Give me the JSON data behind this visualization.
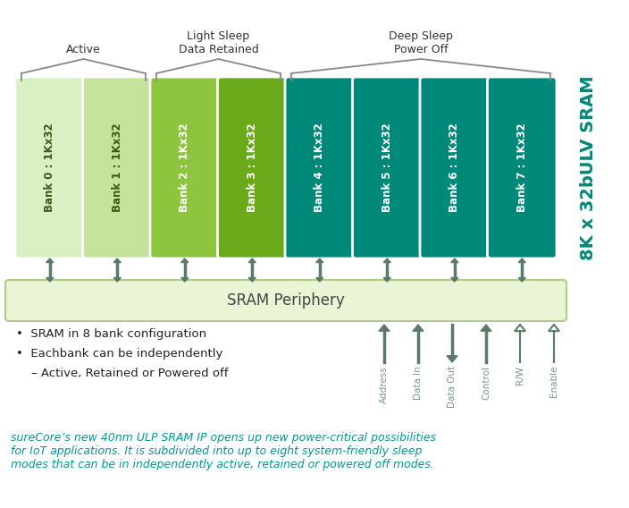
{
  "bg_color": "#ffffff",
  "banks": [
    {
      "label": "Bank 0 : 1Kx32",
      "mode": "active_light"
    },
    {
      "label": "Bank 1 : 1Kx32",
      "mode": "active_dark"
    },
    {
      "label": "Bank 2 : 1Kx32",
      "mode": "light_light"
    },
    {
      "label": "Bank 3 : 1Kx32",
      "mode": "light_dark"
    },
    {
      "label": "Bank 4 : 1Kx32",
      "mode": "deep"
    },
    {
      "label": "Bank 5 : 1Kx32",
      "mode": "deep"
    },
    {
      "label": "Bank 6 : 1Kx32",
      "mode": "deep"
    },
    {
      "label": "Bank 7 : 1Kx32",
      "mode": "deep"
    }
  ],
  "colors": {
    "active_light": "#daefc2",
    "active_dark": "#c5e39a",
    "light_light": "#8dc53f",
    "light_dark": "#6aaa1a",
    "deep": "#008878",
    "periphery_fill": "#eaf5d5",
    "periphery_border": "#b0cc88",
    "arrow_color": "#5a7a6a",
    "label_active": "#3a5a1a",
    "label_light": "#ffffff",
    "label_deep": "#ffffff",
    "bracket_color": "#888888",
    "header_color": "#333333",
    "italic_color": "#009999",
    "signal_fill": "#5a7a6a",
    "signal_outline": "#5a7a6a",
    "side_text_color": "#008878",
    "bullet_color": "#222222"
  },
  "periphery_label": "SRAM Periphery",
  "side_label": "8K x 32bULV SRAM",
  "bullet_points": [
    "•  SRAM in 8 bank configuration",
    "•  Eachbank can be independently",
    "    – Active, Retained or Powered off"
  ],
  "signals": [
    {
      "label": "Address",
      "direction": "up",
      "filled": true
    },
    {
      "label": "Data In",
      "direction": "up",
      "filled": true
    },
    {
      "label": "Data Out",
      "direction": "down",
      "filled": true
    },
    {
      "label": "Control",
      "direction": "up",
      "filled": true
    },
    {
      "label": "R/W",
      "direction": "up",
      "filled": false
    },
    {
      "label": "Enable",
      "direction": "up",
      "filled": false
    }
  ],
  "italic_text": "sureCore’s new 40nm ULP SRAM IP opens up new power-critical possibilities\nfor IoT applications. It is subdivided into up to eight system-friendly sleep\nmodes that can be in independently active, retained or powered off modes.",
  "figure_width": 7.04,
  "figure_height": 5.68
}
